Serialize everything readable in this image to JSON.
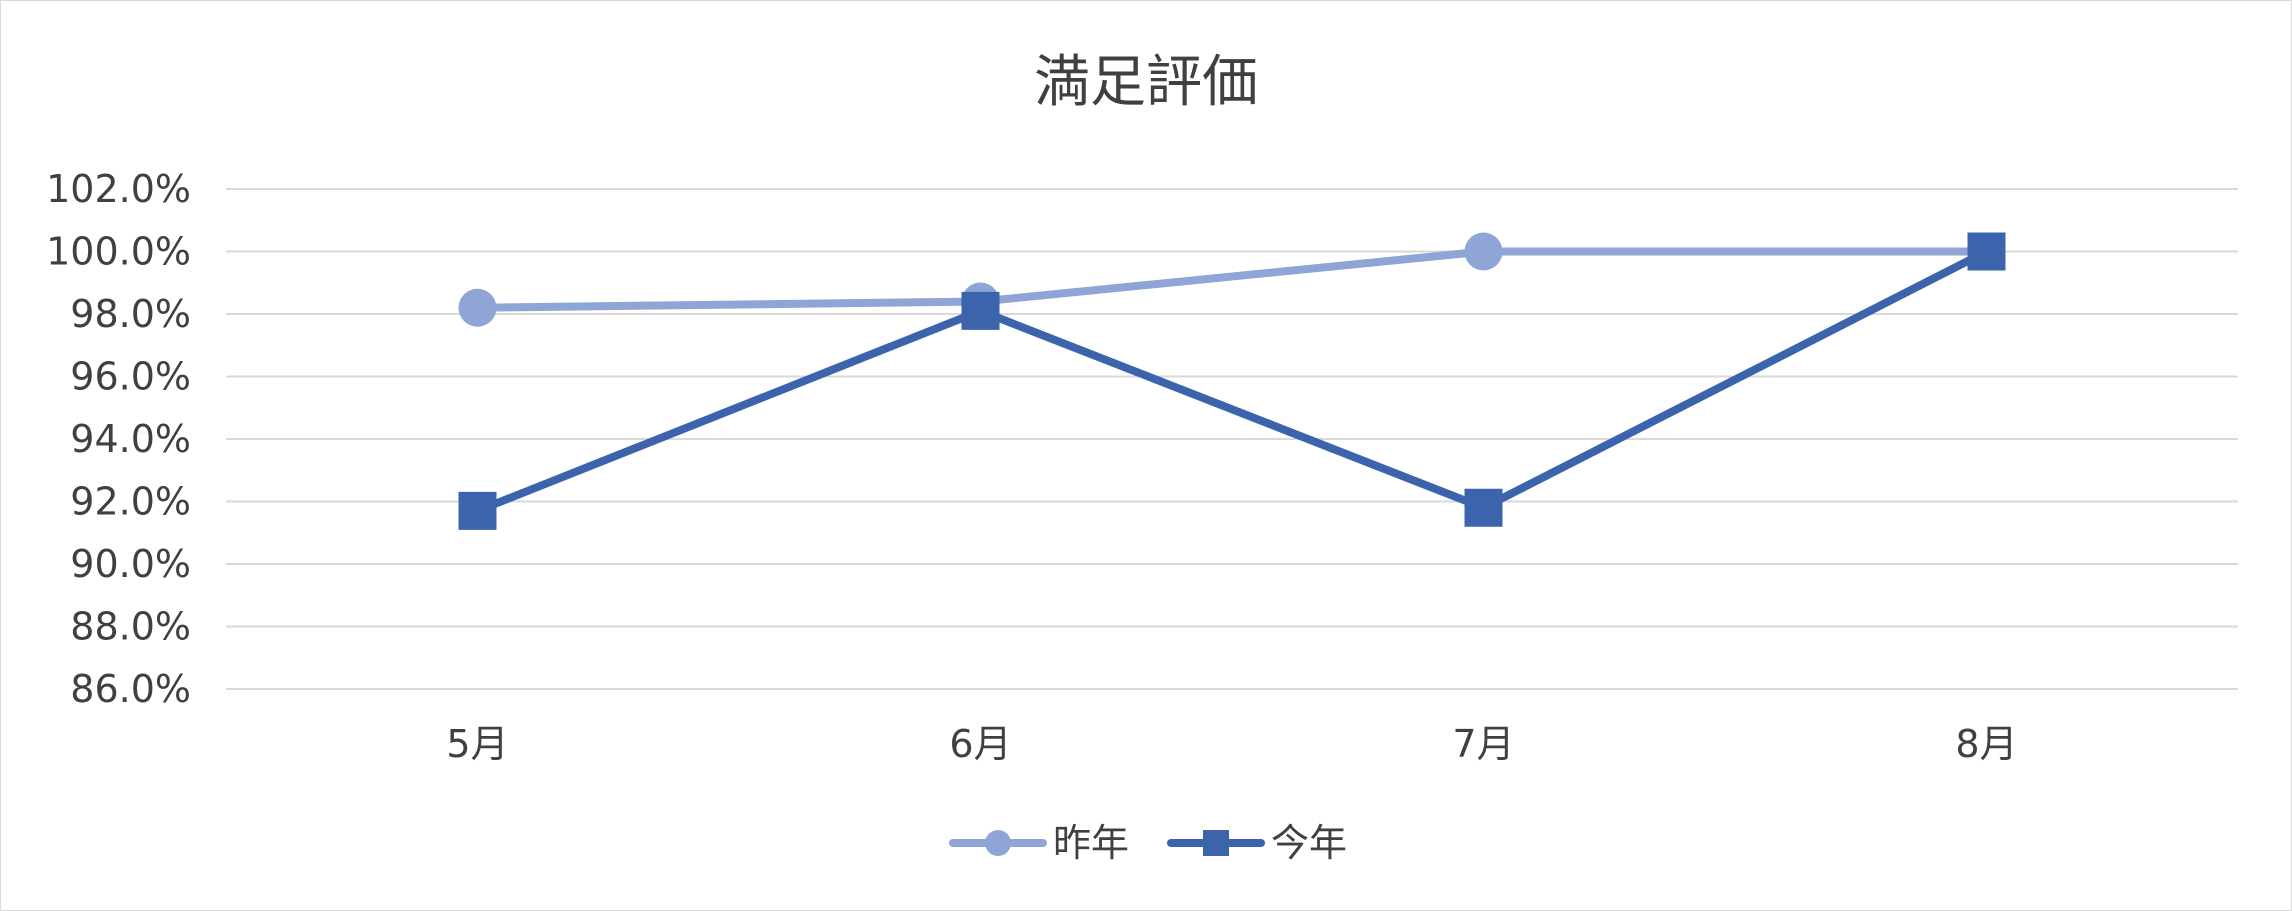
{
  "chart_data": {
    "type": "line",
    "title": "満足評価",
    "xlabel": "",
    "ylabel": "",
    "categories": [
      "5月",
      "6月",
      "7月",
      "8月"
    ],
    "y_tick_labels": [
      "86.0%",
      "88.0%",
      "90.0%",
      "92.0%",
      "94.0%",
      "96.0%",
      "98.0%",
      "100.0%",
      "102.0%"
    ],
    "ylim": [
      86,
      102
    ],
    "y_unit": "%",
    "grid": true,
    "legend_position": "bottom",
    "series": [
      {
        "name": "昨年",
        "values": [
          98.2,
          98.4,
          100.0,
          100.0
        ],
        "color": "#8fa5d6",
        "marker": "circle"
      },
      {
        "name": "今年",
        "values": [
          91.7,
          98.1,
          91.8,
          100.0
        ],
        "color": "#3b64ad",
        "marker": "square"
      }
    ]
  }
}
